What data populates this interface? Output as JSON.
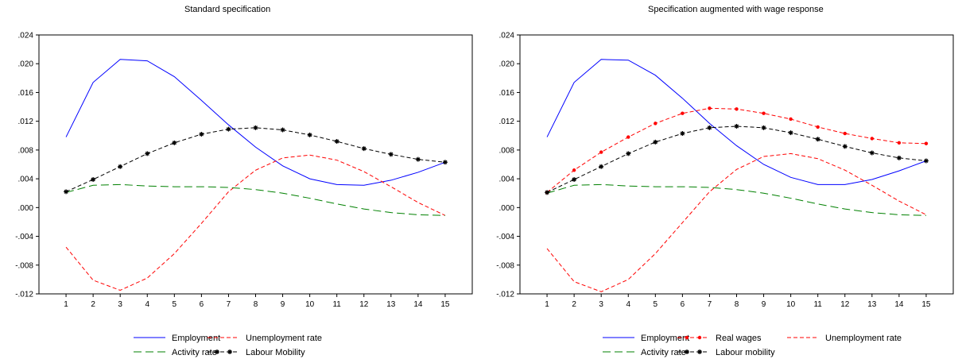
{
  "chart_data": [
    {
      "type": "line",
      "title": "Standard specification",
      "categories": [
        "1",
        "2",
        "3",
        "4",
        "5",
        "6",
        "7",
        "8",
        "9",
        "10",
        "11",
        "12",
        "13",
        "14",
        "15"
      ],
      "ylim": [
        -0.012,
        0.024
      ],
      "y_ticks": [
        ".024",
        ".020",
        ".016",
        ".012",
        ".008",
        ".004",
        ".000",
        "-.004",
        "-.008",
        "-.012"
      ],
      "grid": false,
      "legend_position": "bottom",
      "series": [
        {
          "name": "Employment",
          "color": "#0000ff",
          "style": "solid",
          "marker": "none",
          "values": [
            0.0098,
            0.0174,
            0.0206,
            0.0204,
            0.0182,
            0.0149,
            0.0115,
            0.0084,
            0.0058,
            0.004,
            0.0032,
            0.0031,
            0.0038,
            0.0049,
            0.0063
          ]
        },
        {
          "name": "Unemployment rate",
          "color": "#ff0000",
          "style": "dashed",
          "marker": "none",
          "values": [
            -0.0055,
            -0.0101,
            -0.0115,
            -0.0098,
            -0.0064,
            -0.0022,
            0.0022,
            0.0052,
            0.0069,
            0.0073,
            0.0066,
            0.005,
            0.0029,
            0.0007,
            -0.0011
          ]
        },
        {
          "name": "Activity rate",
          "color": "#008000",
          "style": "longdash",
          "marker": "none",
          "values": [
            0.0021,
            0.0031,
            0.0032,
            0.003,
            0.0029,
            0.0029,
            0.0028,
            0.0025,
            0.002,
            0.0013,
            0.0005,
            -0.0002,
            -0.0007,
            -0.001,
            -0.0011
          ]
        },
        {
          "name": "Labour Mobility",
          "color": "#000000",
          "style": "dashed",
          "marker": "star",
          "values": [
            0.0022,
            0.0039,
            0.0057,
            0.0075,
            0.009,
            0.0102,
            0.0109,
            0.0111,
            0.0108,
            0.0101,
            0.0092,
            0.0082,
            0.0074,
            0.0067,
            0.0063
          ]
        }
      ]
    },
    {
      "type": "line",
      "title": "Specification augmented with wage response",
      "categories": [
        "1",
        "2",
        "3",
        "4",
        "5",
        "6",
        "7",
        "8",
        "9",
        "10",
        "11",
        "12",
        "13",
        "14",
        "15"
      ],
      "ylim": [
        -0.012,
        0.024
      ],
      "y_ticks": [
        ".024",
        ".020",
        ".016",
        ".012",
        ".008",
        ".004",
        ".000",
        "-.004",
        "-.008",
        "-.012"
      ],
      "grid": false,
      "legend_position": "bottom",
      "series": [
        {
          "name": "Employment",
          "color": "#0000ff",
          "style": "solid",
          "marker": "none",
          "values": [
            0.0098,
            0.0174,
            0.0206,
            0.0205,
            0.0184,
            0.0152,
            0.0117,
            0.0086,
            0.006,
            0.0042,
            0.0032,
            0.0032,
            0.0039,
            0.0051,
            0.0065
          ]
        },
        {
          "name": "Real wages",
          "color": "#ff0000",
          "style": "dashed",
          "marker": "dot",
          "values": [
            0.0021,
            0.0052,
            0.0077,
            0.0098,
            0.0117,
            0.0131,
            0.0138,
            0.0137,
            0.0131,
            0.0123,
            0.0112,
            0.0103,
            0.0096,
            0.009,
            0.0089
          ]
        },
        {
          "name": "Unemployment rate",
          "color": "#ff0000",
          "style": "dashed",
          "marker": "none",
          "values": [
            -0.0057,
            -0.0103,
            -0.0117,
            -0.01,
            -0.0064,
            -0.0021,
            0.0022,
            0.0053,
            0.0071,
            0.0075,
            0.0068,
            0.0052,
            0.0031,
            0.0009,
            -0.001
          ]
        },
        {
          "name": "Activity rate",
          "color": "#008000",
          "style": "longdash",
          "marker": "none",
          "values": [
            0.002,
            0.0031,
            0.0032,
            0.003,
            0.0029,
            0.0029,
            0.0028,
            0.0025,
            0.002,
            0.0013,
            0.0005,
            -0.0002,
            -0.0007,
            -0.001,
            -0.0011
          ]
        },
        {
          "name": "Labour mobility",
          "color": "#000000",
          "style": "dashed",
          "marker": "star",
          "values": [
            0.0021,
            0.0039,
            0.0057,
            0.0075,
            0.0091,
            0.0103,
            0.0111,
            0.0113,
            0.0111,
            0.0104,
            0.0095,
            0.0085,
            0.0076,
            0.0069,
            0.0065
          ]
        }
      ]
    }
  ]
}
